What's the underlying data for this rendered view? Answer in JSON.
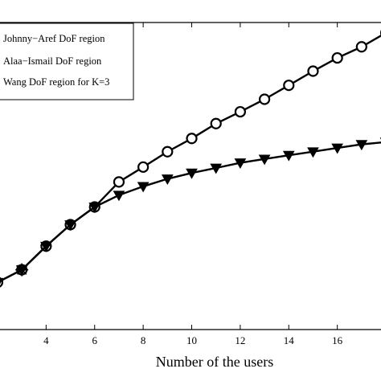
{
  "chart_data": {
    "type": "line",
    "xlabel": "Number of the users",
    "ylabel": "",
    "title": "",
    "xlim": [
      2.1,
      17.8
    ],
    "ylim": [
      0,
      13
    ],
    "x_ticks": [
      "4",
      "6",
      "8",
      "10",
      "12",
      "14",
      "16"
    ],
    "grid": false,
    "legend_position": "top-left",
    "series": [
      {
        "name": "Johnny−Aref DoF region",
        "marker": "circle",
        "color": "#000000",
        "x": [
          2,
          3,
          4,
          5,
          6,
          7,
          8,
          9,
          10,
          11,
          12,
          13,
          14,
          15,
          16,
          17,
          18
        ],
        "y": [
          2.0,
          2.53,
          3.53,
          4.44,
          5.19,
          6.25,
          6.88,
          7.53,
          8.09,
          8.72,
          9.22,
          9.75,
          10.34,
          10.94,
          11.5,
          11.97,
          12.56
        ]
      },
      {
        "name": "Alaa−Ismail DoF region",
        "marker": "triangle-down",
        "color": "#000000",
        "x": [
          2,
          3,
          4,
          5,
          6,
          7,
          8,
          9,
          10,
          11,
          12,
          13,
          14,
          15,
          16,
          17,
          18
        ],
        "y": [
          2.0,
          2.53,
          3.53,
          4.44,
          5.19,
          5.69,
          6.06,
          6.38,
          6.63,
          6.84,
          7.06,
          7.22,
          7.38,
          7.53,
          7.69,
          7.84,
          7.94
        ]
      },
      {
        "name": "Wang DoF region for K=3",
        "marker": "star",
        "color": "#000000",
        "x": [
          3
        ],
        "y": [
          2.53
        ]
      }
    ]
  }
}
